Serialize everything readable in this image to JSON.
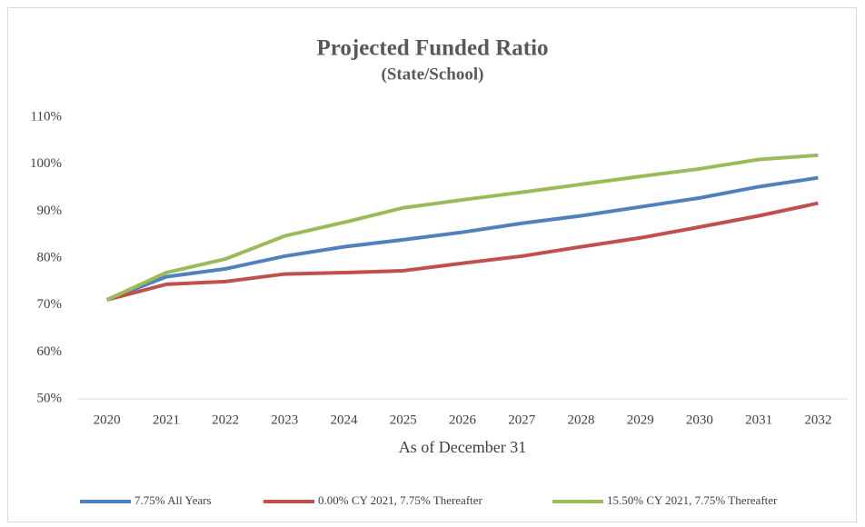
{
  "chart_data": {
    "type": "line",
    "title": "Projected Funded Ratio",
    "subtitle": "(State/School)",
    "x_label": "As of December 31",
    "categories": [
      "2020",
      "2021",
      "2022",
      "2023",
      "2024",
      "2025",
      "2026",
      "2027",
      "2028",
      "2029",
      "2030",
      "2031",
      "2032"
    ],
    "series": [
      {
        "name": "7.75% All Years",
        "color": "#4f81bd",
        "values": [
          71.1,
          76.0,
          77.7,
          80.4,
          82.4,
          83.9,
          85.5,
          87.4,
          89.0,
          90.9,
          92.8,
          95.2,
          97.1
        ]
      },
      {
        "name": "0.00% CY 2021, 7.75% Thereafter",
        "color": "#c0504d",
        "values": [
          71.1,
          74.4,
          75.0,
          76.6,
          76.9,
          77.3,
          78.9,
          80.4,
          82.4,
          84.3,
          86.6,
          89.0,
          91.7
        ]
      },
      {
        "name": "15.50% CY 2021, 7.75% Thereafter",
        "color": "#9bbb59",
        "values": [
          71.1,
          76.9,
          79.8,
          84.7,
          87.6,
          90.7,
          92.4,
          94.0,
          95.7,
          97.4,
          99.0,
          101.0,
          101.9
        ]
      }
    ],
    "ylim": [
      50,
      110
    ],
    "yticks": [
      {
        "value": 50,
        "label": "50%"
      },
      {
        "value": 60,
        "label": "60%"
      },
      {
        "value": 70,
        "label": "70%"
      },
      {
        "value": 80,
        "label": "80%"
      },
      {
        "value": 90,
        "label": "90%"
      },
      {
        "value": 100,
        "label": "100%"
      },
      {
        "value": 110,
        "label": "110%"
      }
    ],
    "grid": false,
    "legend": "bottom"
  }
}
